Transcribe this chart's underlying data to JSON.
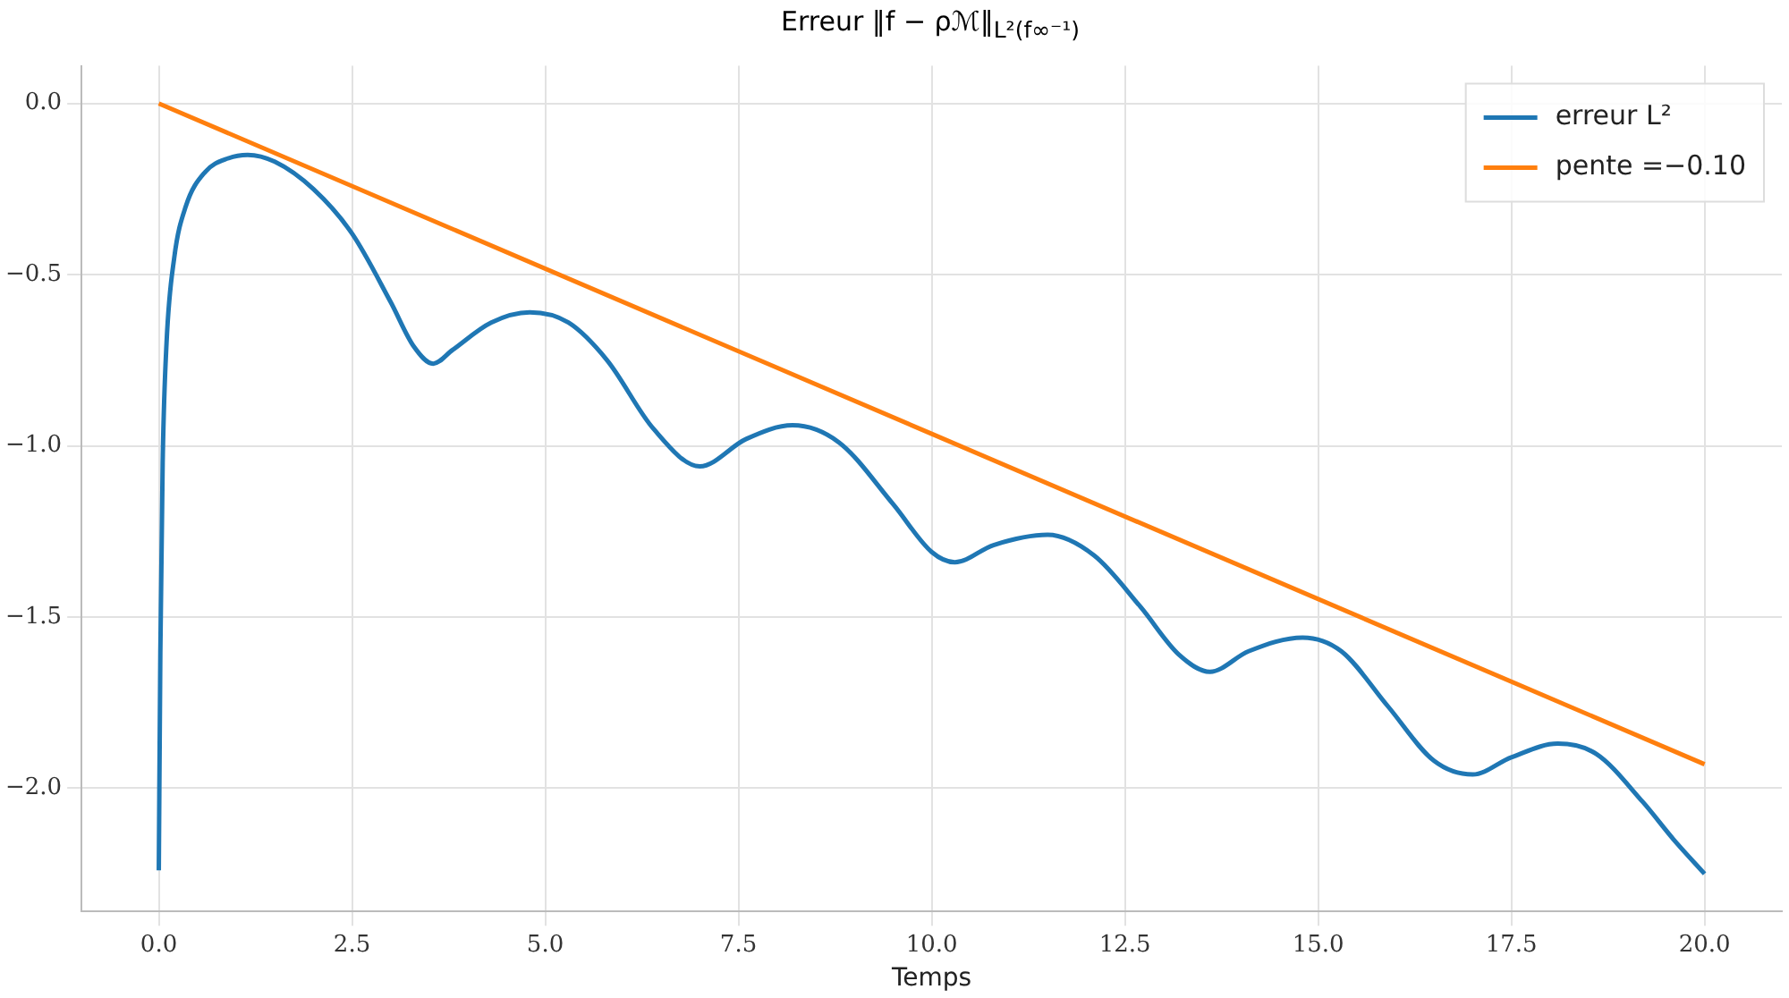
{
  "chart_data": {
    "type": "line",
    "title": "Erreur ‖f − ρℳ‖$_{L²(f∞⁻¹)}$",
    "xlabel": "Temps",
    "xlim": [
      -1,
      21
    ],
    "ylim": [
      -2.36,
      0.11
    ],
    "xticks": [
      {
        "value": 0,
        "label": "0.0"
      },
      {
        "value": 2.5,
        "label": "2.5"
      },
      {
        "value": 5,
        "label": "5.0"
      },
      {
        "value": 7.5,
        "label": "7.5"
      },
      {
        "value": 10,
        "label": "10.0"
      },
      {
        "value": 12.5,
        "label": "12.5"
      },
      {
        "value": 15,
        "label": "15.0"
      },
      {
        "value": 17.5,
        "label": "17.5"
      },
      {
        "value": 20,
        "label": "20.0"
      }
    ],
    "yticks": [
      {
        "value": 0,
        "label": "0.0"
      },
      {
        "value": -0.5,
        "label": "−0.5"
      },
      {
        "value": -1,
        "label": "−1.0"
      },
      {
        "value": -1.5,
        "label": "−1.5"
      },
      {
        "value": -2,
        "label": "−2.0"
      }
    ],
    "grid": true,
    "legend": "top right",
    "series": [
      {
        "name": "erreur L²",
        "color": "#1f77b4",
        "x": [
          0,
          0.02,
          0.05,
          0.1,
          0.2,
          0.35,
          0.6,
          0.9,
          1.15,
          1.5,
          2.0,
          2.5,
          3.0,
          3.3,
          3.55,
          3.8,
          4.3,
          4.8,
          5.3,
          5.8,
          6.4,
          7.0,
          7.6,
          8.2,
          8.8,
          9.5,
          10.0,
          10.3,
          10.8,
          11.5,
          12.1,
          12.7,
          13.2,
          13.6,
          14.1,
          14.8,
          15.3,
          15.9,
          16.5,
          17.0,
          17.5,
          18.1,
          18.6,
          19.2,
          19.6,
          20
        ],
        "values": [
          -2.24,
          -1.6,
          -1.05,
          -0.7,
          -0.45,
          -0.3,
          -0.2,
          -0.16,
          -0.15,
          -0.17,
          -0.25,
          -0.38,
          -0.58,
          -0.71,
          -0.76,
          -0.72,
          -0.64,
          -0.61,
          -0.64,
          -0.75,
          -0.95,
          -1.06,
          -0.98,
          -0.94,
          -0.99,
          -1.17,
          -1.31,
          -1.34,
          -1.29,
          -1.26,
          -1.32,
          -1.47,
          -1.61,
          -1.66,
          -1.6,
          -1.56,
          -1.6,
          -1.76,
          -1.92,
          -1.96,
          -1.91,
          -1.87,
          -1.9,
          -2.04,
          -2.15,
          -2.25
        ]
      },
      {
        "name": "pente =−0.10",
        "color": "#ff7f0e",
        "x": [
          0,
          20
        ],
        "values": [
          0,
          -1.93
        ]
      }
    ]
  }
}
